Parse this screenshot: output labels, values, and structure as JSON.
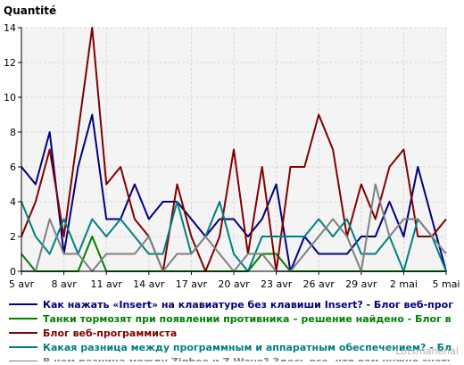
{
  "chart_data": {
    "type": "line",
    "ylabel": "Quantité",
    "ylim": [
      0,
      14
    ],
    "yticks": [
      0,
      2,
      4,
      6,
      8,
      10,
      12,
      14
    ],
    "x": [
      "5 avr",
      "6 avr",
      "7 avr",
      "8 avr",
      "9 avr",
      "10 avr",
      "11 avr",
      "12 avr",
      "13 avr",
      "14 avr",
      "15 avr",
      "16 avr",
      "17 avr",
      "18 avr",
      "19 avr",
      "20 avr",
      "21 avr",
      "22 avr",
      "23 avr",
      "24 avr",
      "25 avr",
      "26 avr",
      "27 avr",
      "28 avr",
      "29 avr",
      "30 avr",
      "1 mai",
      "2 mai",
      "3 mai",
      "4 mai",
      "5 mai"
    ],
    "xtick_labels": [
      "5 avr",
      "8 avr",
      "11 avr",
      "14 avr",
      "17 avr",
      "20 avr",
      "23 avr",
      "26 avr",
      "29 avr",
      "2 mai",
      "5 mai"
    ],
    "grid": true,
    "legend_position": "bottom",
    "series": [
      {
        "name": "Как нажать «Insert» на клавиатуре без клавиши Insert? - Блог веб-прог",
        "color": "#000080",
        "values": [
          6,
          5,
          8,
          1,
          6,
          9,
          3,
          3,
          5,
          3,
          4,
          4,
          3,
          2,
          3,
          3,
          2,
          3,
          5,
          0,
          2,
          1,
          1,
          1,
          2,
          2,
          4,
          2,
          6,
          3,
          0
        ]
      },
      {
        "name": "Танки тормозят при появлении противника – решение найдено - Блог в",
        "color": "#008000",
        "values": [
          1,
          0,
          0,
          0,
          0,
          2,
          0,
          0,
          0,
          0,
          0,
          0,
          0,
          0,
          0,
          0,
          0,
          1,
          1,
          0,
          0,
          0,
          0,
          0,
          0,
          0,
          0,
          0,
          0,
          0,
          0
        ]
      },
      {
        "name": "Блог веб-программиста",
        "color": "#800000",
        "values": [
          2,
          4,
          7,
          2,
          8,
          14,
          5,
          6,
          3,
          2,
          0,
          5,
          2,
          0,
          2,
          7,
          1,
          6,
          0,
          6,
          6,
          9,
          7,
          2,
          5,
          3,
          6,
          7,
          2,
          2,
          3
        ]
      },
      {
        "name": "Какая разница между программным и аппаратным обеспечением? - Бл",
        "color": "#008080",
        "values": [
          4,
          2,
          1,
          3,
          1,
          3,
          2,
          3,
          2,
          1,
          1,
          4,
          1,
          2,
          4,
          1,
          0,
          2,
          2,
          2,
          2,
          3,
          2,
          3,
          1,
          1,
          2,
          0,
          3,
          2,
          0
        ]
      },
      {
        "name": "В чем разница между Zigbee и Z-Wave? Здесь все, что вам нужно знать",
        "color": "#808080",
        "values": [
          0,
          0,
          3,
          1,
          1,
          0,
          1,
          1,
          1,
          2,
          0,
          1,
          1,
          2,
          1,
          0,
          1,
          1,
          0,
          0,
          1,
          2,
          3,
          2,
          0,
          5,
          2,
          3,
          3,
          2,
          1
        ]
      }
    ]
  },
  "watermark": "Lotsmanenal"
}
